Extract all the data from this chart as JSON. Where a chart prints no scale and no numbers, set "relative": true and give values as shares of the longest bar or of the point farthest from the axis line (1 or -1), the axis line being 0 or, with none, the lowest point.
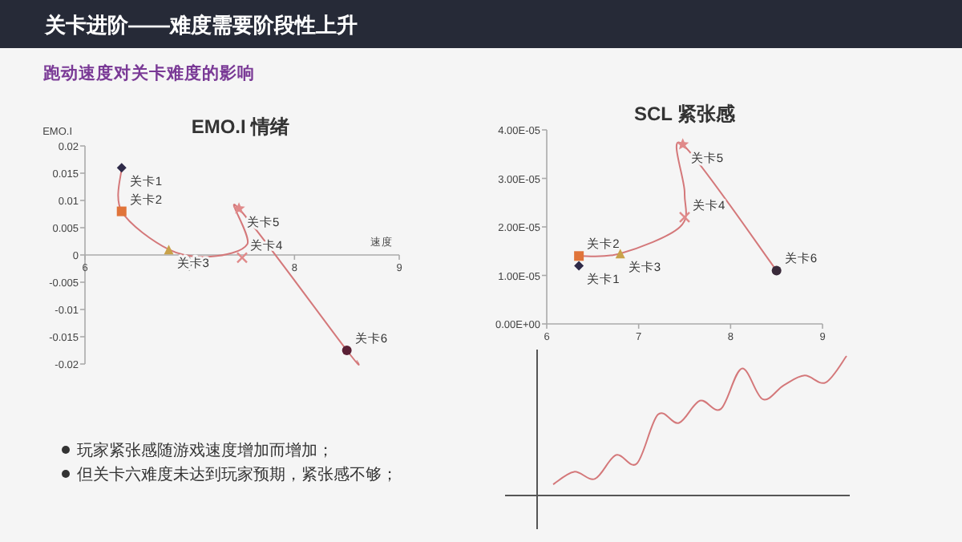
{
  "chart_data": [
    {
      "type": "other",
      "title": "关卡进阶——难度需要阶段性上升",
      "subtitle": "跑动速度对关卡难度的影响",
      "annotations": [
        "玩家紧张感随游戏速度增加而增加；",
        "但关卡六难度未达到玩家预期，紧张感不够；"
      ]
    },
    {
      "type": "line",
      "title": "EMO.I 情绪",
      "xlabel": "速度",
      "ylabel": "EMO.I",
      "xlim": [
        6,
        9
      ],
      "ylim": [
        -0.02,
        0.02
      ],
      "xticks": [
        6,
        7,
        8,
        9
      ],
      "yticks": [
        -0.02,
        -0.015,
        -0.01,
        -0.005,
        0,
        0.005,
        0.01,
        0.015,
        0.02
      ],
      "series": [
        {
          "type": "line",
          "color": "#d4787a",
          "x": [
            6.35,
            6.35,
            6.8,
            7.2,
            7.55,
            7.47,
            8.5,
            8.6
          ],
          "values": [
            0.016,
            0.008,
            0.001,
            -0.0003,
            0.002,
            0.0085,
            -0.0175,
            -0.0195
          ]
        },
        {
          "type": "scatter",
          "name": "关卡1",
          "marker": "diamond",
          "color": "#2e2a48",
          "x": [
            6.35
          ],
          "values": [
            0.016
          ]
        },
        {
          "type": "scatter",
          "name": "关卡2",
          "marker": "square",
          "color": "#e0743a",
          "x": [
            6.35
          ],
          "values": [
            0.008
          ]
        },
        {
          "type": "scatter",
          "name": "关卡3",
          "marker": "triangle",
          "color": "#c9a24a",
          "x": [
            6.8
          ],
          "values": [
            0.001
          ]
        },
        {
          "type": "scatter",
          "name": "关卡4",
          "marker": "cross",
          "color": "#e08a8a",
          "x": [
            7.5
          ],
          "values": [
            -0.0005
          ]
        },
        {
          "type": "scatter",
          "name": "关卡5",
          "marker": "star",
          "color": "#e08a8a",
          "x": [
            7.47
          ],
          "values": [
            0.0085
          ]
        },
        {
          "type": "scatter",
          "name": "关卡6",
          "marker": "circle",
          "color": "#5a2035",
          "x": [
            8.5
          ],
          "values": [
            -0.0175
          ]
        }
      ]
    },
    {
      "type": "line",
      "title": "SCL 紧张感",
      "xlim": [
        6,
        9
      ],
      "ylim": [
        0,
        4e-05
      ],
      "xticks": [
        6,
        7,
        8,
        9
      ],
      "yticks": [
        {
          "value": 0,
          "label": "0.00E+00"
        },
        {
          "value": 1e-05,
          "label": "1.00E-05"
        },
        {
          "value": 2e-05,
          "label": "2.00E-05"
        },
        {
          "value": 3e-05,
          "label": "3.00E-05"
        },
        {
          "value": 4e-05,
          "label": "4.00E-05"
        }
      ],
      "series": [
        {
          "type": "line",
          "color": "#d4787a",
          "x": [
            6.35,
            6.8,
            7.45,
            7.5,
            7.48,
            8.5
          ],
          "values": [
            1.4e-05,
            1.45e-05,
            2e-05,
            2.7e-05,
            3.7e-05,
            1.1e-05
          ]
        },
        {
          "type": "scatter",
          "name": "关卡1",
          "marker": "diamond",
          "color": "#2e2a48",
          "x": [
            6.35
          ],
          "values": [
            1.2e-05
          ]
        },
        {
          "type": "scatter",
          "name": "关卡2",
          "marker": "square",
          "color": "#e0743a",
          "x": [
            6.35
          ],
          "values": [
            1.4e-05
          ]
        },
        {
          "type": "scatter",
          "name": "关卡3",
          "marker": "triangle",
          "color": "#c9a24a",
          "x": [
            6.8
          ],
          "values": [
            1.45e-05
          ]
        },
        {
          "type": "scatter",
          "name": "关卡4",
          "marker": "cross",
          "color": "#e08a8a",
          "x": [
            7.5
          ],
          "values": [
            2.2e-05
          ]
        },
        {
          "type": "scatter",
          "name": "关卡5",
          "marker": "star",
          "color": "#e08a8a",
          "x": [
            7.48
          ],
          "values": [
            3.7e-05
          ]
        },
        {
          "type": "scatter",
          "name": "关卡6",
          "marker": "circle",
          "color": "#3a2a3a",
          "x": [
            8.5
          ],
          "values": [
            1.1e-05
          ]
        }
      ]
    },
    {
      "type": "line",
      "relative": true,
      "categories": [
        null,
        null,
        null,
        null,
        null,
        null,
        null,
        null,
        null,
        null,
        null,
        null,
        null,
        null,
        null
      ],
      "series": [
        {
          "color": "#d4787a",
          "values": [
            0.08,
            0.17,
            0.12,
            0.29,
            0.23,
            0.58,
            0.52,
            0.68,
            0.62,
            0.91,
            0.69,
            0.79,
            0.86,
            0.81,
            1
          ]
        }
      ]
    }
  ]
}
